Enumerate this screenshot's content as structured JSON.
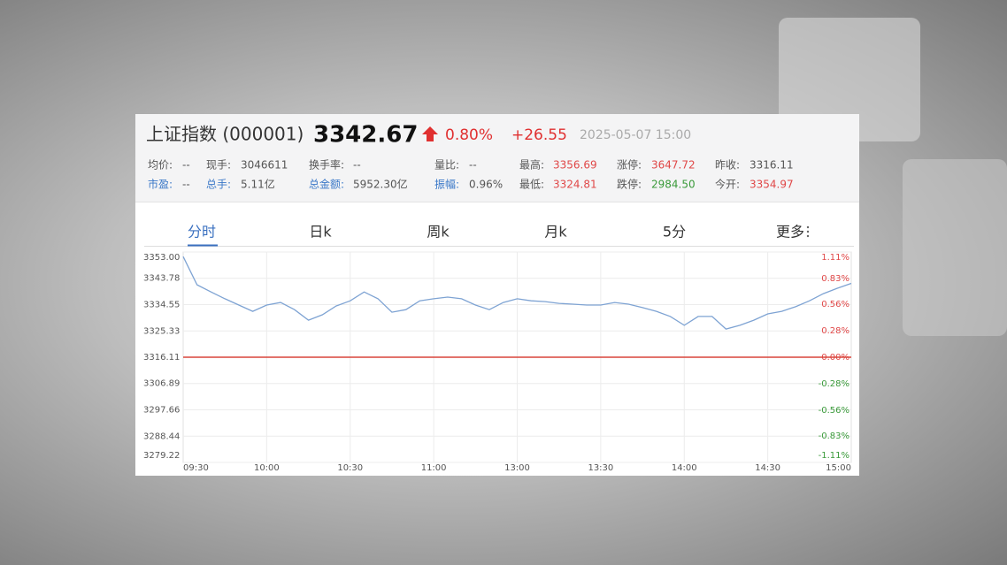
{
  "header": {
    "name": "上证指数 (000001)",
    "price": "3342.67",
    "change_pct": "0.80%",
    "change": "+26.55",
    "time": "2025-05-07 15:00"
  },
  "stats": [
    [
      {
        "label": "均价:",
        "value": "--"
      },
      {
        "label": "现手:",
        "value": "3046611"
      },
      {
        "label": "换手率:",
        "value": "--"
      },
      {
        "label": "量比:",
        "value": "--"
      },
      {
        "label": "最高:",
        "value": "3356.69"
      },
      {
        "label": "涨停:",
        "value": "3647.72"
      },
      {
        "label": "昨收:",
        "value": "3316.11"
      }
    ],
    [
      {
        "label": "市盈:",
        "value": "--"
      },
      {
        "label": "总手:",
        "value": "5.11亿"
      },
      {
        "label": "总金额:",
        "value": "5952.30亿"
      },
      {
        "label": "振幅:",
        "value": "0.96%"
      },
      {
        "label": "最低:",
        "value": "3324.81"
      },
      {
        "label": "跌停:",
        "value": "2984.50"
      },
      {
        "label": "今开:",
        "value": "3354.97"
      }
    ]
  ],
  "tabs": [
    "分时",
    "日k",
    "周k",
    "月k",
    "5分",
    "更多"
  ],
  "chart_data": {
    "type": "line",
    "color": "#7ea3d3",
    "x": [
      "09:30",
      "09:35",
      "09:40",
      "09:45",
      "09:50",
      "09:55",
      "10:00",
      "10:05",
      "10:10",
      "10:15",
      "10:20",
      "10:25",
      "10:30",
      "10:35",
      "10:40",
      "10:45",
      "10:50",
      "10:55",
      "11:00",
      "11:05",
      "11:10",
      "11:15",
      "11:20",
      "11:25",
      "13:00",
      "13:05",
      "13:10",
      "13:15",
      "13:20",
      "13:25",
      "13:30",
      "13:35",
      "13:40",
      "13:45",
      "13:50",
      "13:55",
      "14:00",
      "14:05",
      "14:10",
      "14:15",
      "14:20",
      "14:25",
      "14:30",
      "14:35",
      "14:40",
      "14:45",
      "14:50",
      "14:55",
      "15:00"
    ],
    "values": [
      3351.4,
      3341.5,
      3339.0,
      3336.6,
      3334.4,
      3332.2,
      3334.4,
      3335.3,
      3332.8,
      3329.1,
      3331.0,
      3334.1,
      3335.9,
      3339.0,
      3336.6,
      3331.9,
      3332.8,
      3335.9,
      3336.6,
      3337.2,
      3336.6,
      3334.4,
      3332.8,
      3335.3,
      3336.6,
      3335.9,
      3335.6,
      3335.0,
      3334.7,
      3334.4,
      3334.4,
      3335.3,
      3334.7,
      3333.5,
      3332.2,
      3330.4,
      3327.3,
      3330.4,
      3330.4,
      3326.0,
      3327.3,
      3329.1,
      3331.3,
      3332.2,
      3333.8,
      3335.9,
      3338.4,
      3340.3,
      3342.0
    ],
    "xlim": [
      "09:30",
      "15:00"
    ],
    "xticks": [
      "09:30",
      "10:00",
      "10:30",
      "11:00",
      "13:00",
      "13:30",
      "14:00",
      "14:30",
      "15:00"
    ],
    "ylim": [
      3279.22,
      3353
    ],
    "yticks": [
      {
        "value": 3353,
        "label": "3353.00"
      },
      3343.78,
      3334.55,
      3325.33,
      3316.11,
      3306.89,
      3297.66,
      3288.44,
      3279.22
    ],
    "y2lim": [
      -1.11,
      1.11
    ],
    "y2ticks": [
      {
        "value": 1.11,
        "label": "1.11%"
      },
      {
        "value": 0.83,
        "label": "0.83%"
      },
      {
        "value": 0.56,
        "label": "0.56%"
      },
      {
        "value": 0.28,
        "label": "0.28%"
      },
      {
        "value": 0,
        "label": "0.00%"
      },
      {
        "value": -0.28,
        "label": "-0.28%"
      },
      {
        "value": -0.56,
        "label": "-0.56%"
      },
      {
        "value": -0.83,
        "label": "-0.83%"
      },
      {
        "value": -1.11,
        "label": "-1.11%"
      }
    ],
    "up_color": "#e04848",
    "down_color": "#3a9a3a",
    "reference_line": {
      "value": 3316.11,
      "color": "#d9453b"
    },
    "grid": true
  }
}
